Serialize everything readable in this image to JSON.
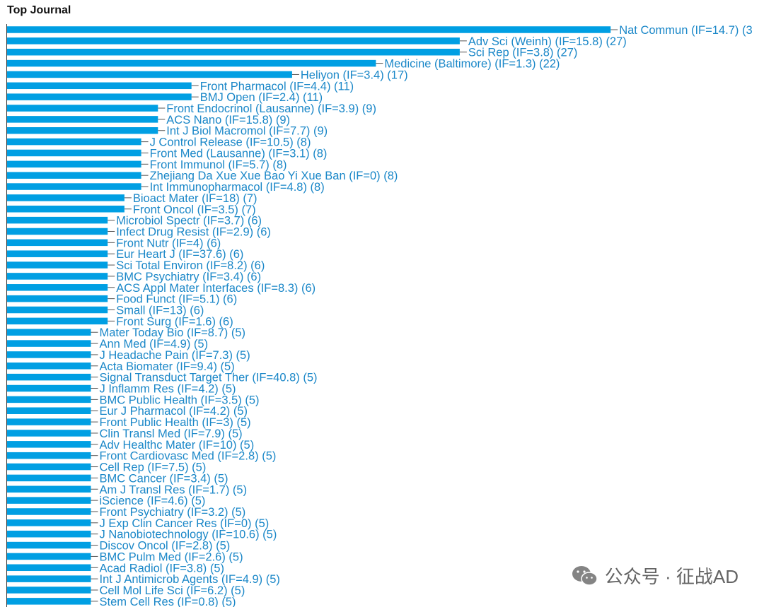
{
  "chart_data": {
    "type": "bar",
    "orientation": "horizontal",
    "title": "Top Journal",
    "bar_color": "#009fe3",
    "label_color": "#1a87c8",
    "bars": [
      {
        "label": "Nat Commun (IF=14.7) (3",
        "value": 36
      },
      {
        "label": "Adv Sci (Weinh) (IF=15.8) (27)",
        "value": 27
      },
      {
        "label": "Sci Rep (IF=3.8) (27)",
        "value": 27
      },
      {
        "label": "Medicine (Baltimore) (IF=1.3) (22)",
        "value": 22
      },
      {
        "label": "Heliyon (IF=3.4) (17)",
        "value": 17
      },
      {
        "label": "Front Pharmacol (IF=4.4) (11)",
        "value": 11
      },
      {
        "label": "BMJ Open (IF=2.4) (11)",
        "value": 11
      },
      {
        "label": "Front Endocrinol (Lausanne) (IF=3.9) (9)",
        "value": 9
      },
      {
        "label": "ACS Nano (IF=15.8) (9)",
        "value": 9
      },
      {
        "label": "Int J Biol Macromol (IF=7.7) (9)",
        "value": 9
      },
      {
        "label": "J Control Release (IF=10.5) (8)",
        "value": 8
      },
      {
        "label": "Front Med (Lausanne) (IF=3.1) (8)",
        "value": 8
      },
      {
        "label": "Front Immunol (IF=5.7) (8)",
        "value": 8
      },
      {
        "label": "Zhejiang Da Xue Xue Bao Yi Xue Ban (IF=0) (8)",
        "value": 8
      },
      {
        "label": "Int Immunopharmacol (IF=4.8) (8)",
        "value": 8
      },
      {
        "label": "Bioact Mater (IF=18) (7)",
        "value": 7
      },
      {
        "label": "Front Oncol (IF=3.5) (7)",
        "value": 7
      },
      {
        "label": "Microbiol Spectr (IF=3.7) (6)",
        "value": 6
      },
      {
        "label": "Infect Drug Resist (IF=2.9) (6)",
        "value": 6
      },
      {
        "label": "Front Nutr (IF=4) (6)",
        "value": 6
      },
      {
        "label": "Eur Heart J (IF=37.6) (6)",
        "value": 6
      },
      {
        "label": "Sci Total Environ (IF=8.2) (6)",
        "value": 6
      },
      {
        "label": "BMC Psychiatry (IF=3.4) (6)",
        "value": 6
      },
      {
        "label": "ACS Appl Mater Interfaces (IF=8.3) (6)",
        "value": 6
      },
      {
        "label": "Food Funct (IF=5.1) (6)",
        "value": 6
      },
      {
        "label": "Small (IF=13) (6)",
        "value": 6
      },
      {
        "label": "Front Surg (IF=1.6) (6)",
        "value": 6
      },
      {
        "label": "Mater Today Bio (IF=8.7) (5)",
        "value": 5
      },
      {
        "label": "Ann Med (IF=4.9) (5)",
        "value": 5
      },
      {
        "label": "J Headache Pain (IF=7.3) (5)",
        "value": 5
      },
      {
        "label": "Acta Biomater (IF=9.4) (5)",
        "value": 5
      },
      {
        "label": "Signal Transduct Target Ther (IF=40.8) (5)",
        "value": 5
      },
      {
        "label": "J Inflamm Res (IF=4.2) (5)",
        "value": 5
      },
      {
        "label": "BMC Public Health (IF=3.5) (5)",
        "value": 5
      },
      {
        "label": "Eur J Pharmacol (IF=4.2) (5)",
        "value": 5
      },
      {
        "label": "Front Public Health (IF=3) (5)",
        "value": 5
      },
      {
        "label": "Clin Transl Med (IF=7.9) (5)",
        "value": 5
      },
      {
        "label": "Adv Healthc Mater (IF=10) (5)",
        "value": 5
      },
      {
        "label": "Front Cardiovasc Med (IF=2.8) (5)",
        "value": 5
      },
      {
        "label": "Cell Rep (IF=7.5) (5)",
        "value": 5
      },
      {
        "label": "BMC Cancer (IF=3.4) (5)",
        "value": 5
      },
      {
        "label": "Am J Transl Res (IF=1.7) (5)",
        "value": 5
      },
      {
        "label": "iScience (IF=4.6) (5)",
        "value": 5
      },
      {
        "label": "Front Psychiatry (IF=3.2) (5)",
        "value": 5
      },
      {
        "label": "J Exp Clin Cancer Res (IF=0) (5)",
        "value": 5
      },
      {
        "label": "J Nanobiotechnology (IF=10.6) (5)",
        "value": 5
      },
      {
        "label": "Discov Oncol (IF=2.8) (5)",
        "value": 5
      },
      {
        "label": "BMC Pulm Med (IF=2.6) (5)",
        "value": 5
      },
      {
        "label": "Acad Radiol (IF=3.8) (5)",
        "value": 5
      },
      {
        "label": "Int J Antimicrob Agents (IF=4.9) (5)",
        "value": 5
      },
      {
        "label": "Cell Mol Life Sci (IF=6.2) (5)",
        "value": 5
      },
      {
        "label": "Stem Cell Res (IF=0.8) (5)",
        "value": 5
      }
    ]
  },
  "watermark": {
    "text": "公众号 · 征战AD",
    "icon": "wechat-icon"
  }
}
